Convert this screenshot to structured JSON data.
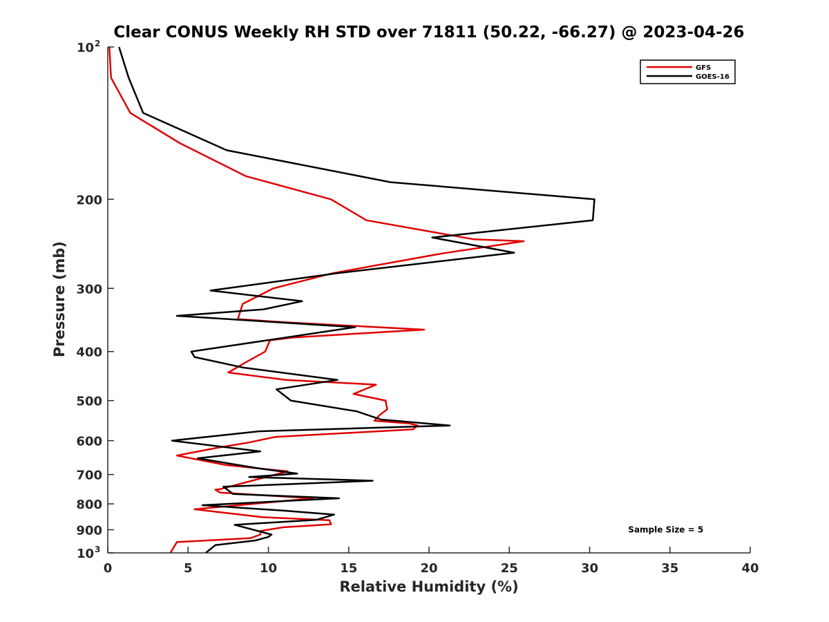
{
  "chart_data": {
    "type": "line",
    "title": "Clear CONUS Weekly RH STD over 71811 (50.22, -66.27) @ 2023-04-26",
    "xlabel": "Relative Humidity (%)",
    "ylabel": "Pressure (mb)",
    "xlim": [
      0,
      40
    ],
    "ylim": [
      100,
      1000
    ],
    "y_scale": "log",
    "y_reversed": true,
    "grid": false,
    "legend_position": "top-right",
    "x_ticks": [
      "0",
      "5",
      "10",
      "15",
      "20",
      "25",
      "30",
      "35",
      "40"
    ],
    "y_ticks": [
      {
        "value": 100,
        "base": "10",
        "exp": "2"
      },
      {
        "value": 200,
        "label": "200"
      },
      {
        "value": 300,
        "label": "300"
      },
      {
        "value": 400,
        "label": "400"
      },
      {
        "value": 500,
        "label": "500"
      },
      {
        "value": 600,
        "label": "600"
      },
      {
        "value": 700,
        "label": "700"
      },
      {
        "value": 800,
        "label": "800"
      },
      {
        "value": 900,
        "label": "900"
      },
      {
        "value": 1000,
        "base": "10",
        "exp": "3"
      }
    ],
    "series": [
      {
        "name": "GFS",
        "color": "#e00000",
        "points": [
          [
            0.1,
            100
          ],
          [
            0.2,
            115
          ],
          [
            1.4,
            135
          ],
          [
            4.5,
            155
          ],
          [
            8.6,
            180
          ],
          [
            13.9,
            200
          ],
          [
            16.1,
            220
          ],
          [
            22.8,
            240
          ],
          [
            25.9,
            242
          ],
          [
            20.8,
            256
          ],
          [
            14.0,
            280
          ],
          [
            10.3,
            300
          ],
          [
            8.4,
            322
          ],
          [
            8.1,
            345
          ],
          [
            11.0,
            350
          ],
          [
            19.7,
            362
          ],
          [
            11.6,
            375
          ],
          [
            10.1,
            380
          ],
          [
            9.8,
            400
          ],
          [
            8.6,
            420
          ],
          [
            7.5,
            440
          ],
          [
            11.1,
            455
          ],
          [
            16.7,
            465
          ],
          [
            15.3,
            485
          ],
          [
            17.3,
            500
          ],
          [
            17.4,
            520
          ],
          [
            16.9,
            535
          ],
          [
            16.6,
            548
          ],
          [
            18.8,
            555
          ],
          [
            19.3,
            560
          ],
          [
            19.0,
            570
          ],
          [
            10.4,
            590
          ],
          [
            8.8,
            605
          ],
          [
            6.8,
            620
          ],
          [
            4.3,
            642
          ],
          [
            7.3,
            670
          ],
          [
            11.2,
            690
          ],
          [
            7.0,
            748
          ],
          [
            6.7,
            750
          ],
          [
            7.0,
            760
          ],
          [
            12.8,
            780
          ],
          [
            5.4,
            820
          ],
          [
            9.6,
            850
          ],
          [
            13.8,
            862
          ],
          [
            13.9,
            878
          ],
          [
            10.9,
            890
          ],
          [
            9.5,
            905
          ],
          [
            9.5,
            920
          ],
          [
            8.9,
            935
          ],
          [
            4.3,
            952
          ],
          [
            3.9,
            1000
          ]
        ]
      },
      {
        "name": "GOES-16",
        "color": "#000000",
        "points": [
          [
            0.7,
            100
          ],
          [
            1.3,
            115
          ],
          [
            2.2,
            135
          ],
          [
            7.4,
            160
          ],
          [
            17.6,
            185
          ],
          [
            30.3,
            200
          ],
          [
            30.2,
            220
          ],
          [
            20.2,
            238
          ],
          [
            25.3,
            255
          ],
          [
            14.3,
            280
          ],
          [
            6.4,
            303
          ],
          [
            12.1,
            318
          ],
          [
            9.7,
            330
          ],
          [
            4.3,
            340
          ],
          [
            15.4,
            358
          ],
          [
            5.2,
            400
          ],
          [
            5.4,
            410
          ],
          [
            8.4,
            430
          ],
          [
            14.3,
            455
          ],
          [
            10.5,
            475
          ],
          [
            11.4,
            500
          ],
          [
            15.5,
            525
          ],
          [
            17.0,
            545
          ],
          [
            21.3,
            560
          ],
          [
            9.4,
            575
          ],
          [
            4.0,
            600
          ],
          [
            9.5,
            630
          ],
          [
            5.6,
            650
          ],
          [
            9.3,
            680
          ],
          [
            11.8,
            697
          ],
          [
            8.8,
            708
          ],
          [
            16.5,
            720
          ],
          [
            7.2,
            740
          ],
          [
            7.8,
            765
          ],
          [
            14.4,
            780
          ],
          [
            5.9,
            805
          ],
          [
            10.9,
            825
          ],
          [
            14.1,
            840
          ],
          [
            13.0,
            860
          ],
          [
            7.9,
            880
          ],
          [
            10.2,
            920
          ],
          [
            10.0,
            930
          ],
          [
            9.2,
            945
          ],
          [
            6.7,
            965
          ],
          [
            6.1,
            1000
          ]
        ]
      }
    ],
    "annotations": [
      {
        "text": "Sample Size = 5",
        "x": 32.4,
        "y": 900
      }
    ]
  }
}
